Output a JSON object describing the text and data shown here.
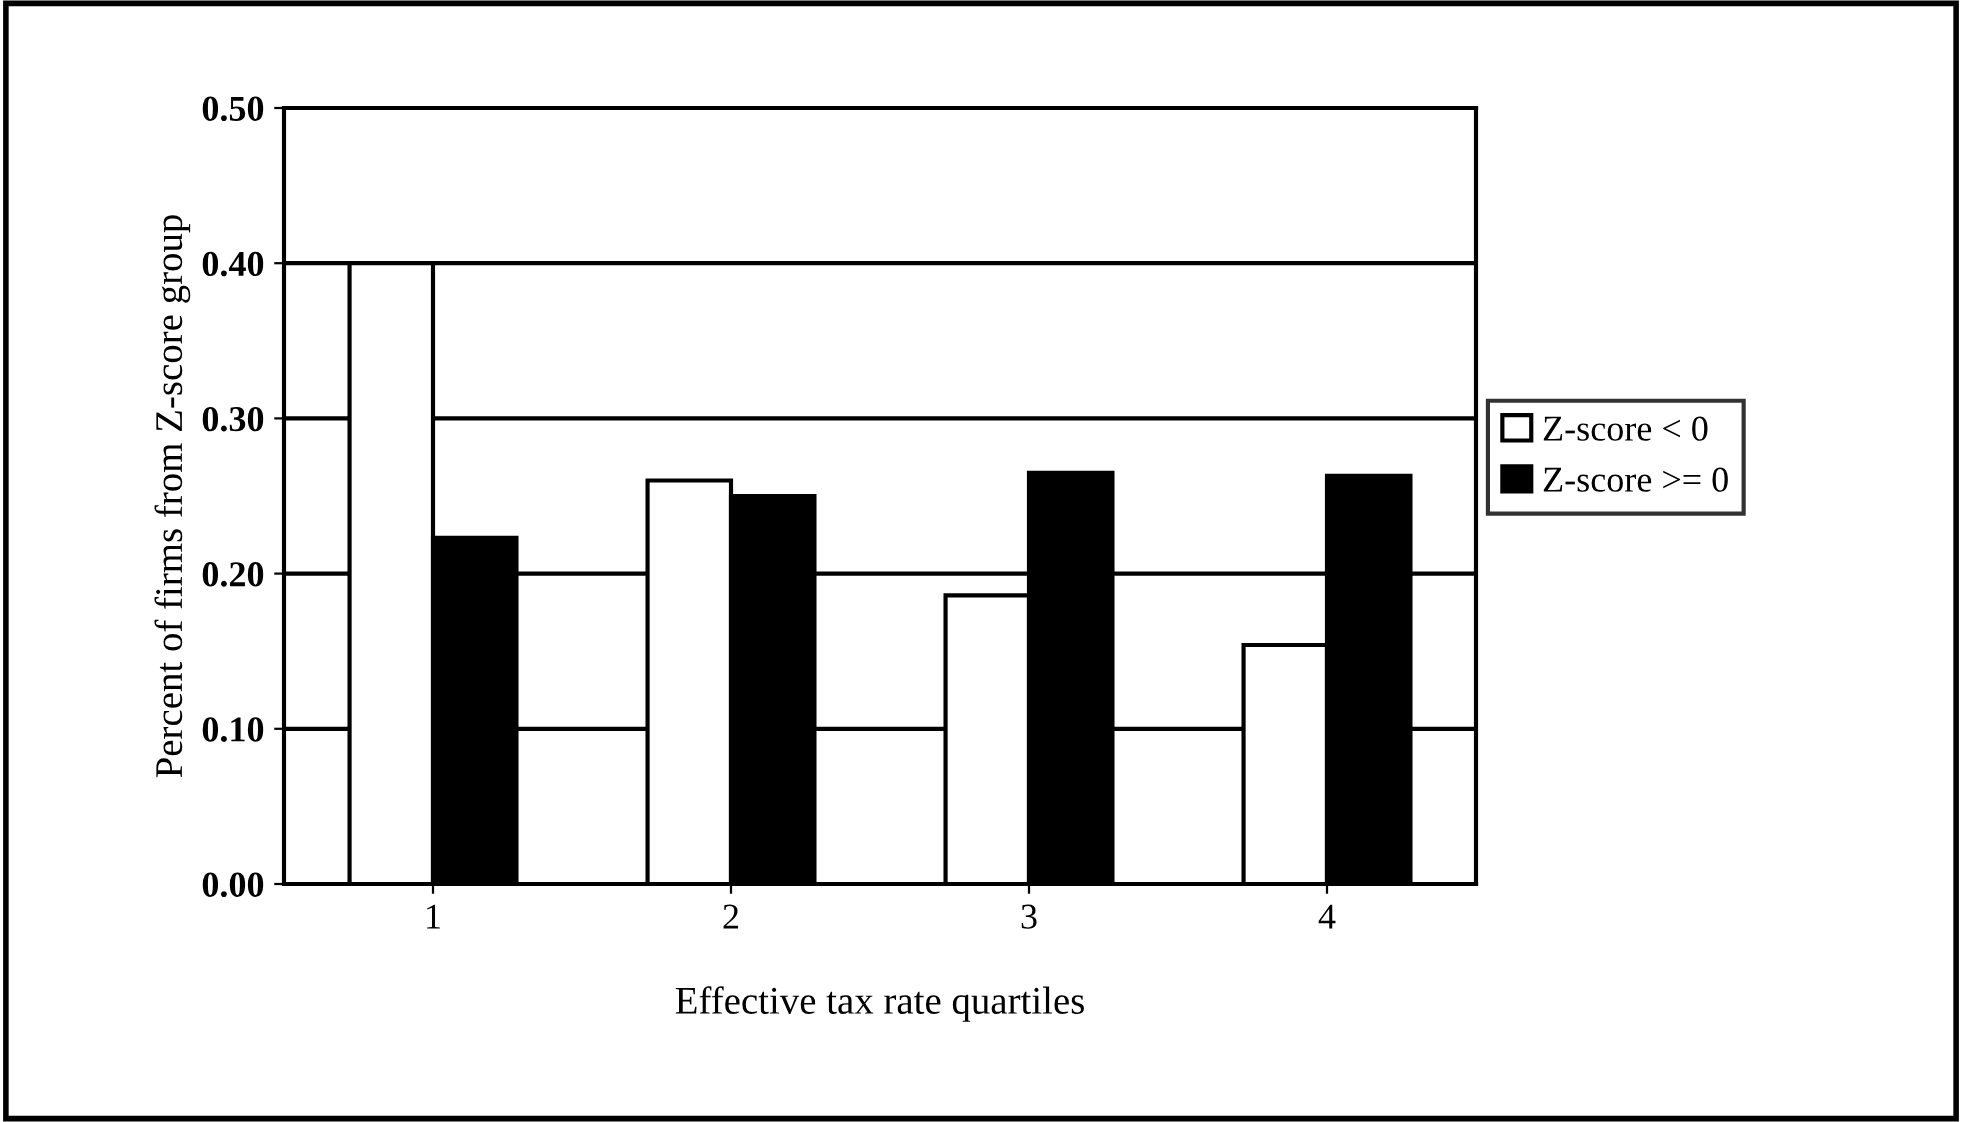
{
  "chart_data": {
    "type": "bar",
    "xlabel": "Effective tax rate quartiles",
    "ylabel": "Percent of firms from Z-score group",
    "categories": [
      "1",
      "2",
      "3",
      "4"
    ],
    "series": [
      {
        "name": "Z-score < 0",
        "color": "#ffffff",
        "values": [
          0.4,
          0.26,
          0.186,
          0.154
        ]
      },
      {
        "name": "Z-score >= 0",
        "color": "#000000",
        "values": [
          0.223,
          0.25,
          0.265,
          0.263
        ]
      }
    ],
    "ylim": [
      0,
      0.5
    ],
    "yticks": [
      {
        "value": 0,
        "label": "0.00"
      },
      {
        "value": 0.1,
        "label": "0.10"
      },
      {
        "value": 0.2,
        "label": "0.20"
      },
      {
        "value": 0.3,
        "label": "0.30"
      },
      {
        "value": 0.4,
        "label": "0.40"
      },
      {
        "value": 0.5,
        "label": "0.50"
      }
    ],
    "grid": "y",
    "legend": "right"
  }
}
